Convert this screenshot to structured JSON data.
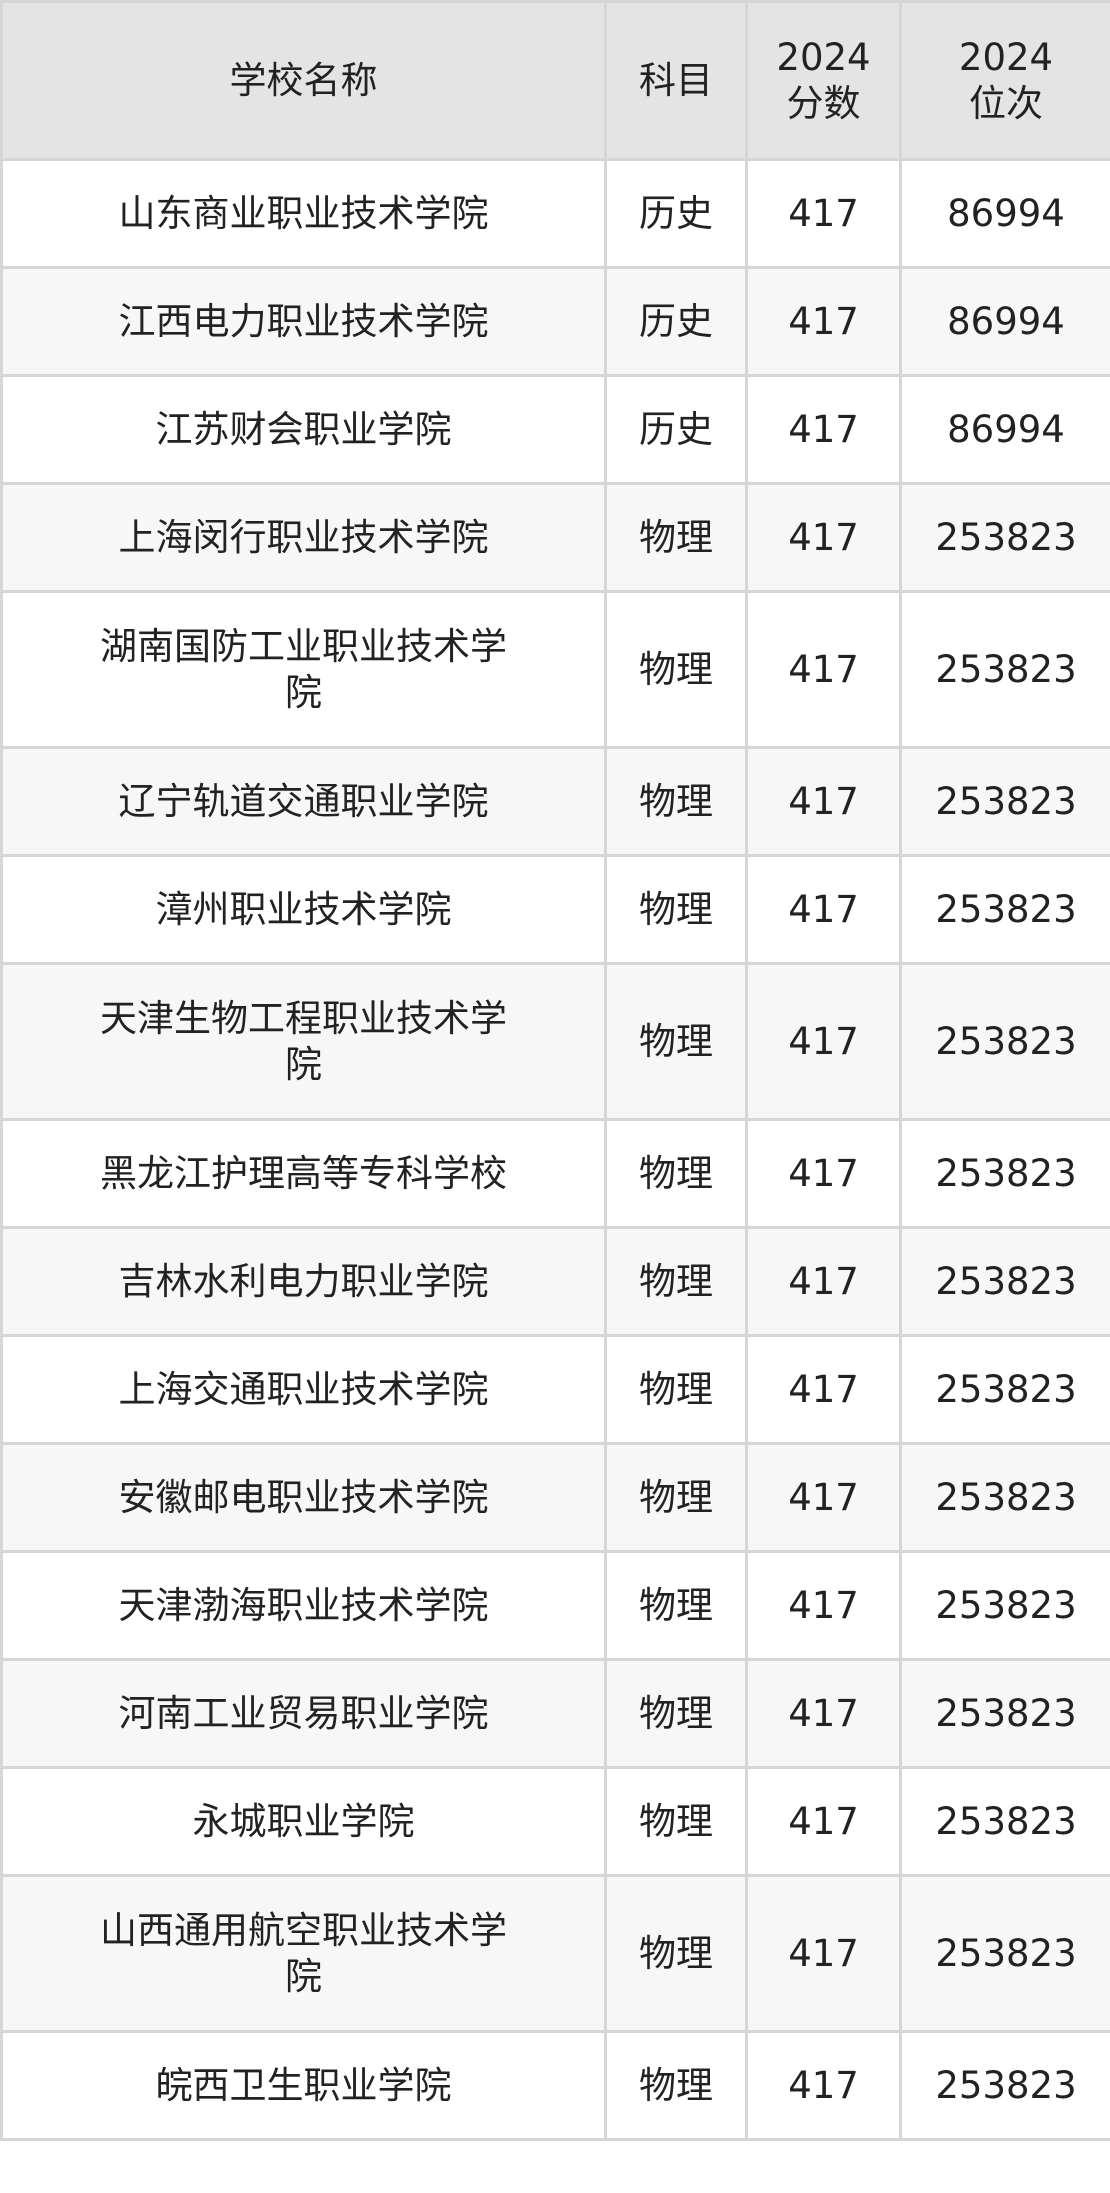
{
  "header": {
    "school": "学校名称",
    "subject": "科目",
    "score": "2024\n分数",
    "rank": "2024\n位次"
  },
  "rows": [
    {
      "school": "山东商业职业技术学院",
      "subject": "历史",
      "score": "417",
      "rank": "86994"
    },
    {
      "school": "江西电力职业技术学院",
      "subject": "历史",
      "score": "417",
      "rank": "86994"
    },
    {
      "school": "江苏财会职业学院",
      "subject": "历史",
      "score": "417",
      "rank": "86994"
    },
    {
      "school": "上海闵行职业技术学院",
      "subject": "物理",
      "score": "417",
      "rank": "253823"
    },
    {
      "school": "湖南国防工业职业技术学院",
      "subject": "物理",
      "score": "417",
      "rank": "253823"
    },
    {
      "school": "辽宁轨道交通职业学院",
      "subject": "物理",
      "score": "417",
      "rank": "253823"
    },
    {
      "school": "漳州职业技术学院",
      "subject": "物理",
      "score": "417",
      "rank": "253823"
    },
    {
      "school": "天津生物工程职业技术学院",
      "subject": "物理",
      "score": "417",
      "rank": "253823"
    },
    {
      "school": "黑龙江护理高等专科学校",
      "subject": "物理",
      "score": "417",
      "rank": "253823"
    },
    {
      "school": "吉林水利电力职业学院",
      "subject": "物理",
      "score": "417",
      "rank": "253823"
    },
    {
      "school": "上海交通职业技术学院",
      "subject": "物理",
      "score": "417",
      "rank": "253823"
    },
    {
      "school": "安徽邮电职业技术学院",
      "subject": "物理",
      "score": "417",
      "rank": "253823"
    },
    {
      "school": "天津渤海职业技术学院",
      "subject": "物理",
      "score": "417",
      "rank": "253823"
    },
    {
      "school": "河南工业贸易职业学院",
      "subject": "物理",
      "score": "417",
      "rank": "253823"
    },
    {
      "school": "永城职业学院",
      "subject": "物理",
      "score": "417",
      "rank": "253823"
    },
    {
      "school": "山西通用航空职业技术学院",
      "subject": "物理",
      "score": "417",
      "rank": "253823"
    },
    {
      "school": "皖西卫生职业学院",
      "subject": "物理",
      "score": "417",
      "rank": "253823"
    }
  ]
}
